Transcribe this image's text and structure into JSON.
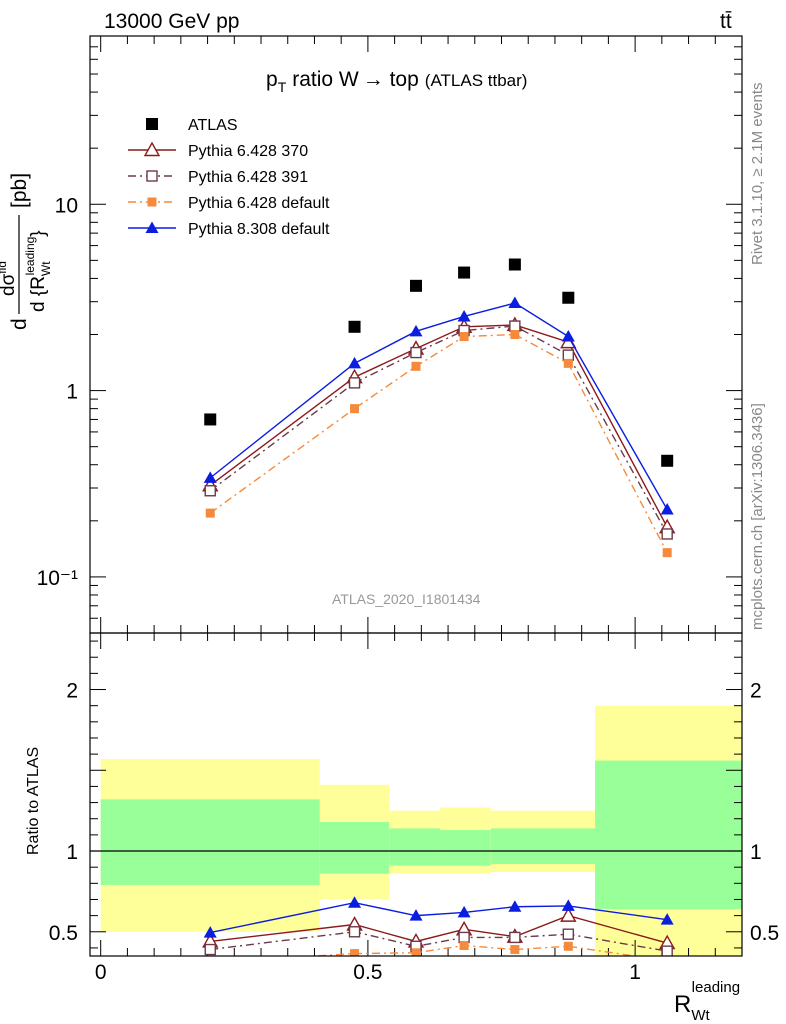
{
  "header": {
    "energy_label": "13000 GeV pp",
    "process_label": "tt̄"
  },
  "side_labels": {
    "rivet": "Rivet 3.1.10, ≥ 2.1M events",
    "mcplots": "mcplots.cern.ch [arXiv:1306.3436]"
  },
  "chart_data": [
    {
      "type": "scatter",
      "title": "p_T ratio W → top (ATLAS ttbar)",
      "title_main": "ratio W",
      "title_arrow": "→ top",
      "title_sub": "(ATLAS ttbar)",
      "ylabel": "dσ^fid / d{R_Wt^leading} [pb]",
      "yscale": "log",
      "ylim": [
        0.05,
        80
      ],
      "xlim": [
        -0.02,
        1.2
      ],
      "y_tick_labels": [
        "10⁻¹",
        "1",
        "10"
      ],
      "y_tick_values": [
        0.1,
        1,
        10
      ],
      "watermark": "ATLAS_2020_I1801434",
      "legend_placement": "top-left",
      "x": [
        0.205,
        0.475,
        0.59,
        0.68,
        0.775,
        0.875,
        1.06
      ],
      "series": [
        {
          "name": "ATLAS",
          "color": "#000000",
          "marker": "square-filled",
          "line": "none",
          "values": [
            0.7,
            2.2,
            3.65,
            4.3,
            4.75,
            3.15,
            0.42
          ]
        },
        {
          "name": "Pythia 6.428 370",
          "color": "#8b1a1a",
          "marker": "triangle-open",
          "line": "solid",
          "values": [
            0.31,
            1.18,
            1.68,
            2.2,
            2.25,
            1.82,
            0.185
          ]
        },
        {
          "name": "Pythia 6.428 391",
          "color": "#6b3a4a",
          "marker": "square-open",
          "line": "dashdot",
          "values": [
            0.29,
            1.1,
            1.6,
            2.1,
            2.22,
            1.55,
            0.17
          ]
        },
        {
          "name": "Pythia 6.428 default",
          "color": "#f58a3c",
          "marker": "square-filled-small",
          "line": "dashdot",
          "values": [
            0.22,
            0.8,
            1.35,
            1.95,
            2.0,
            1.4,
            0.135
          ]
        },
        {
          "name": "Pythia 8.308 default",
          "color": "#0a1ee0",
          "marker": "triangle-filled",
          "line": "solid",
          "values": [
            0.34,
            1.4,
            2.08,
            2.5,
            2.95,
            1.95,
            0.23
          ]
        }
      ]
    },
    {
      "type": "scatter",
      "ylabel": "Ratio to ATLAS",
      "xlabel": "R_Wt^leading",
      "ylim": [
        0.35,
        2.35
      ],
      "xlim": [
        -0.02,
        1.2
      ],
      "x_tick_labels": [
        "0",
        "0.5",
        "1"
      ],
      "x_tick_values": [
        0,
        0.5,
        1
      ],
      "y_tick_labels": [
        "0.5",
        "1",
        "2"
      ],
      "y_tick_values": [
        0.5,
        1,
        2
      ],
      "bands": [
        {
          "xlo": 0.0,
          "xhi": 0.41,
          "inner": [
            0.79,
            1.32
          ],
          "outer": [
            0.5,
            1.57
          ]
        },
        {
          "xlo": 0.41,
          "xhi": 0.54,
          "inner": [
            0.86,
            1.18
          ],
          "outer": [
            0.7,
            1.41
          ]
        },
        {
          "xlo": 0.54,
          "xhi": 0.635,
          "inner": [
            0.91,
            1.14
          ],
          "outer": [
            0.86,
            1.25
          ]
        },
        {
          "xlo": 0.635,
          "xhi": 0.73,
          "inner": [
            0.91,
            1.13
          ],
          "outer": [
            0.86,
            1.27
          ]
        },
        {
          "xlo": 0.73,
          "xhi": 0.925,
          "inner": [
            0.92,
            1.14
          ],
          "outer": [
            0.87,
            1.25
          ]
        },
        {
          "xlo": 0.925,
          "xhi": 1.2,
          "inner": [
            0.64,
            1.56
          ],
          "outer": [
            0.35,
            1.9
          ]
        }
      ],
      "band_colors": {
        "inner": "#99ff99",
        "outer": "#ffff99"
      },
      "x": [
        0.205,
        0.475,
        0.59,
        0.68,
        0.775,
        0.875,
        1.06
      ],
      "series": [
        {
          "name": "Pythia 6.428 370",
          "color": "#8b1a1a",
          "marker": "triangle-open",
          "line": "solid",
          "values": [
            0.44,
            0.545,
            0.44,
            0.515,
            0.47,
            0.6,
            0.43
          ]
        },
        {
          "name": "Pythia 6.428 391",
          "color": "#6b3a4a",
          "marker": "square-open",
          "line": "dashdot",
          "values": [
            0.39,
            0.5,
            0.41,
            0.465,
            0.465,
            0.485,
            0.38
          ]
        },
        {
          "name": "Pythia 6.428 default",
          "color": "#f58a3c",
          "marker": "square-filled-small",
          "line": "dashdot",
          "values": [
            0.31,
            0.365,
            0.37,
            0.415,
            0.39,
            0.41,
            0.32
          ]
        },
        {
          "name": "Pythia 8.308 default",
          "color": "#0a1ee0",
          "marker": "triangle-filled",
          "line": "solid",
          "values": [
            0.495,
            0.68,
            0.6,
            0.62,
            0.655,
            0.66,
            0.575
          ]
        }
      ]
    }
  ]
}
